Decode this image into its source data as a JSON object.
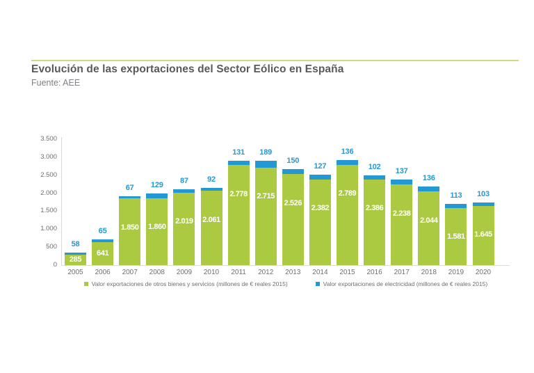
{
  "page": {
    "title": "Evolución de las exportaciones del Sector Eólico en España",
    "source": "Fuente: AEE"
  },
  "colors": {
    "green": "#abc941",
    "blue": "#2399d3",
    "rule": "#cfdb82",
    "title_text": "#58595b",
    "subtitle_text": "#808285",
    "axis_text": "#6d6e71",
    "axis_line": "#dadada",
    "bar_label": "#ffffff"
  },
  "chart_data": {
    "type": "bar",
    "stacked": true,
    "title": "Evolución de las exportaciones del Sector Eólico en España",
    "subtitle": "Fuente: AEE",
    "categories": [
      "2005",
      "2006",
      "2007",
      "2008",
      "2009",
      "2010",
      "2011",
      "2012",
      "2013",
      "2014",
      "2015",
      "2016",
      "2017",
      "2018",
      "2019",
      "2020"
    ],
    "series": [
      {
        "name": "Valor exportaciones de otros bienes y servicios (millones de € reales 2015)",
        "color_key": "green",
        "values": [
          285,
          641,
          1850,
          1860,
          2019,
          2061,
          2778,
          2715,
          2526,
          2382,
          2789,
          2386,
          2238,
          2044,
          1581,
          1645
        ]
      },
      {
        "name": "Valor exportaciones de electricidad (millones de € reales 2015)",
        "color_key": "blue",
        "values": [
          58,
          65,
          67,
          129,
          87,
          92,
          131,
          189,
          150,
          127,
          136,
          102,
          137,
          136,
          113,
          103
        ]
      }
    ],
    "ylim": [
      0,
      3500
    ],
    "y_ticks": [
      0,
      500,
      1000,
      1500,
      2000,
      2500,
      3000,
      3500
    ],
    "thousands_separator": ".",
    "grid": false,
    "legend_position": "bottom",
    "value_labels": "green segment values shown in white inside bars; blue values shown above bars"
  }
}
